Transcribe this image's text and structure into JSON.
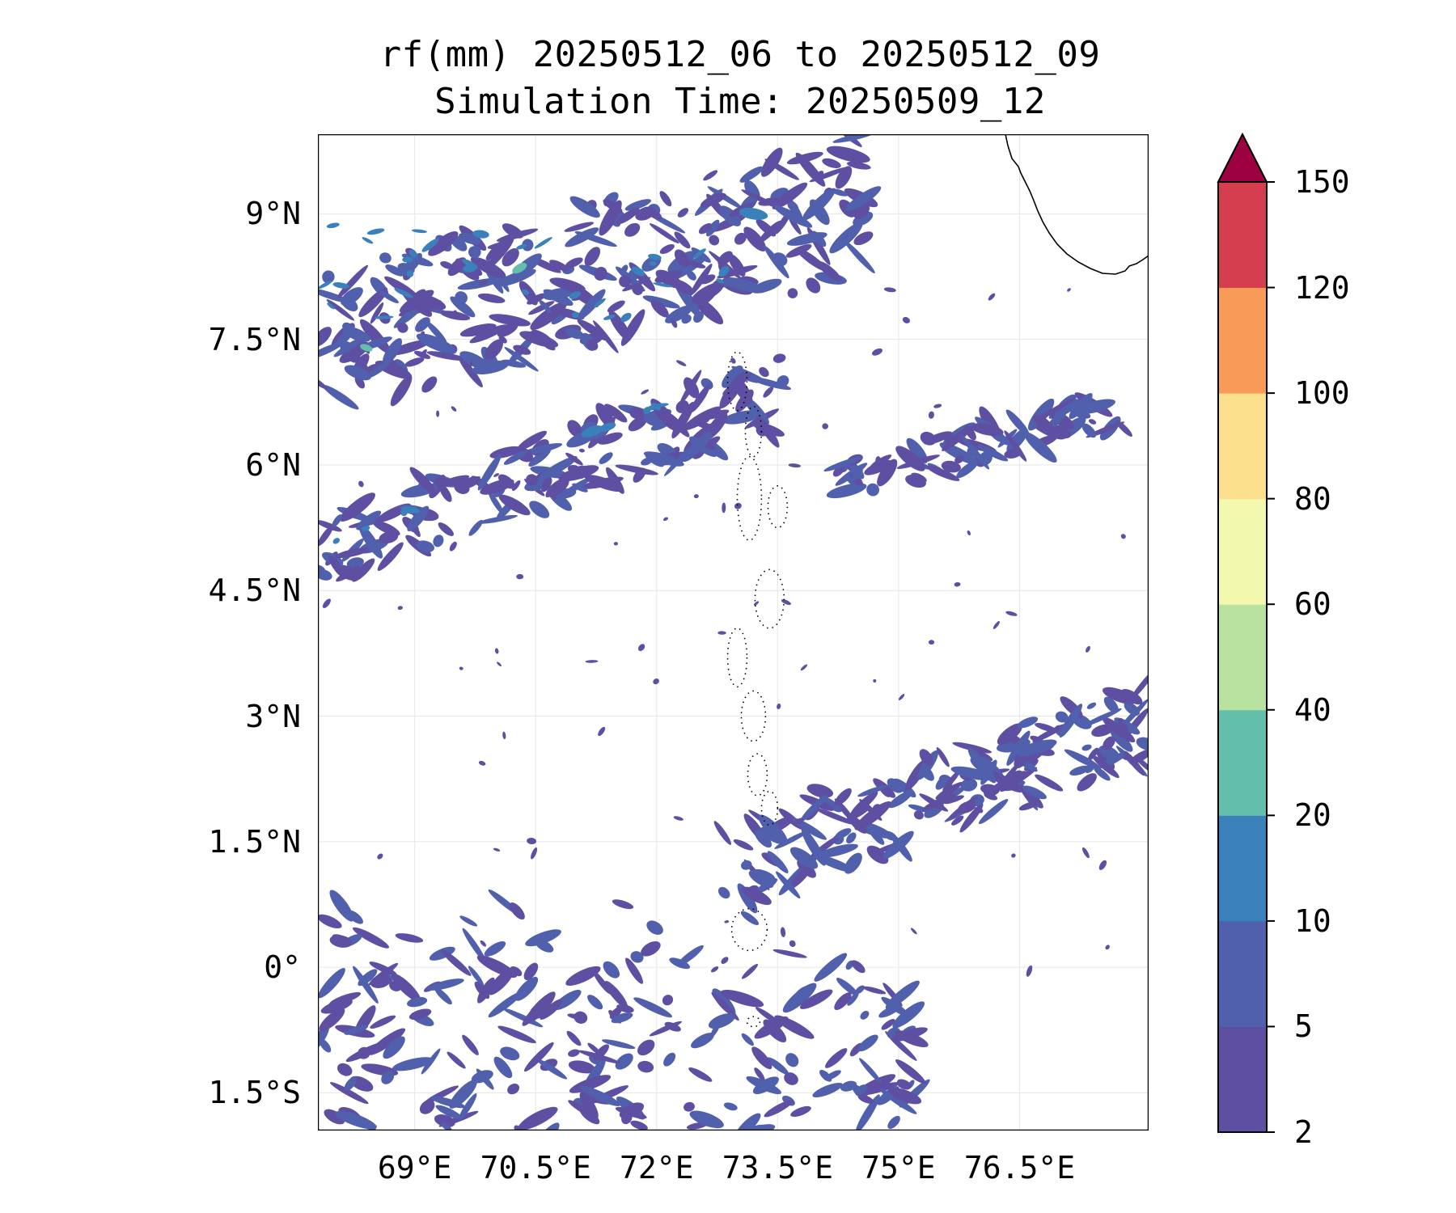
{
  "title": {
    "line1": "rf(mm) 20250512_06 to 20250512_09",
    "line2": "Simulation Time: 20250509_12"
  },
  "map": {
    "lon_range": [
      67.8,
      78.1
    ],
    "lat_range": [
      -1.95,
      9.95
    ],
    "lat_ticks": [
      {
        "value": 9,
        "label": "9°N"
      },
      {
        "value": 7.5,
        "label": "7.5°N"
      },
      {
        "value": 6,
        "label": "6°N"
      },
      {
        "value": 4.5,
        "label": "4.5°N"
      },
      {
        "value": 3,
        "label": "3°N"
      },
      {
        "value": 1.5,
        "label": "1.5°N"
      },
      {
        "value": 0,
        "label": "0°"
      },
      {
        "value": -1.5,
        "label": "1.5°S"
      }
    ],
    "lon_ticks": [
      {
        "value": 69,
        "label": "69°E"
      },
      {
        "value": 70.5,
        "label": "70.5°E"
      },
      {
        "value": 72,
        "label": "72°E"
      },
      {
        "value": 73.5,
        "label": "73.5°E"
      },
      {
        "value": 75,
        "label": "75°E"
      },
      {
        "value": 76.5,
        "label": "76.5°E"
      }
    ],
    "grid": true,
    "coastline": "southwest India (Kerala) coast in the top-right corner",
    "islands": "Maldives atolls as dotted outlines along 73°E–73.8°E",
    "rain_bands": [
      {
        "desc": "northern band",
        "lat_range": [
          6.8,
          9.9
        ],
        "lon_range": [
          67.8,
          74.6
        ]
      },
      {
        "desc": "middle band",
        "lat_range": [
          5.0,
          7.2
        ],
        "lon_range": [
          67.8,
          73.6
        ]
      },
      {
        "desc": "east of Maldives band",
        "lat_range": [
          5.8,
          7.2
        ],
        "lon_range": [
          74.2,
          77.8
        ]
      },
      {
        "desc": "southeast band",
        "lat_range": [
          1.2,
          3.5
        ],
        "lon_range": [
          72.8,
          78.1
        ]
      },
      {
        "desc": "southwest band",
        "lat_range": [
          -1.9,
          0.8
        ],
        "lon_range": [
          67.8,
          75.2
        ]
      }
    ]
  },
  "colorbar": {
    "levels": [
      2,
      5,
      10,
      20,
      40,
      60,
      80,
      100,
      120,
      150
    ],
    "labels": [
      "2",
      "5",
      "10",
      "20",
      "40",
      "60",
      "80",
      "100",
      "120",
      "150"
    ],
    "colors": [
      "#5e4fa2",
      "#5060ad",
      "#3a80bb",
      "#63bfab",
      "#b9e19f",
      "#f2f8ae",
      "#fbdf8d",
      "#f99b58",
      "#d53e4f"
    ],
    "extend_color": "#9e0142",
    "extend": "max"
  }
}
